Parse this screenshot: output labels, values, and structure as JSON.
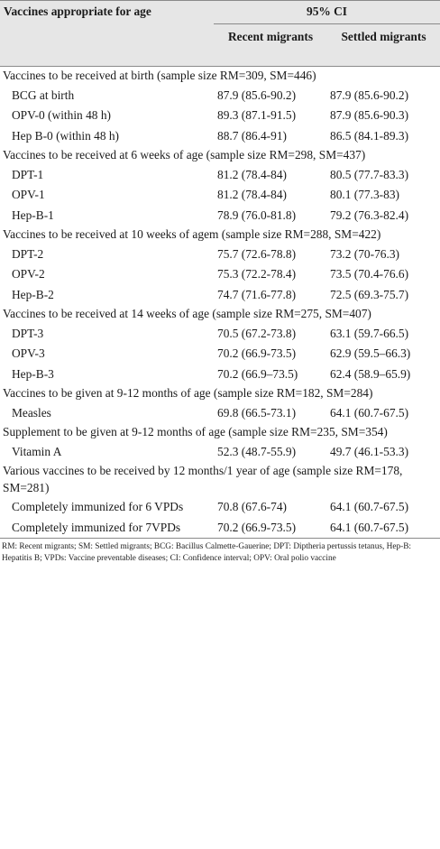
{
  "header": {
    "label": "Vaccines appropriate for age",
    "ci": "95% CI",
    "col_recent": "Recent migrants",
    "col_settled": "Settled migrants"
  },
  "sections": [
    {
      "title": "Vaccines to be received at birth (sample size RM=309, SM=446)",
      "rows": [
        {
          "label": "BCG at birth",
          "recent": "87.9 (85.6-90.2)",
          "settled": "87.9 (85.6-90.2)"
        },
        {
          "label": "OPV-0 (within 48 h)",
          "recent": "89.3 (87.1-91.5)",
          "settled": "87.9 (85.6-90.3)"
        },
        {
          "label": "Hep B-0 (within 48 h)",
          "recent": "88.7 (86.4-91)",
          "settled": "86.5 (84.1-89.3)"
        }
      ]
    },
    {
      "title": "Vaccines to be received at 6 weeks of age (sample size RM=298, SM=437)",
      "rows": [
        {
          "label": "DPT-1",
          "recent": "81.2 (78.4-84)",
          "settled": "80.5 (77.7-83.3)"
        },
        {
          "label": "OPV-1",
          "recent": "81.2 (78.4-84)",
          "settled": "80.1 (77.3-83)"
        },
        {
          "label": "Hep-B-1",
          "recent": "78.9 (76.0-81.8)",
          "settled": "79.2 (76.3-82.4)"
        }
      ]
    },
    {
      "title": "Vaccines to be received at 10 weeks of agem (sample size RM=288, SM=422)",
      "rows": [
        {
          "label": "DPT-2",
          "recent": "75.7 (72.6-78.8)",
          "settled": "73.2 (70-76.3)"
        },
        {
          "label": "OPV-2",
          "recent": "75.3 (72.2-78.4)",
          "settled": "73.5 (70.4-76.6)"
        },
        {
          "label": "Hep-B-2",
          "recent": "74.7 (71.6-77.8)",
          "settled": "72.5 (69.3-75.7)"
        }
      ]
    },
    {
      "title": "Vaccines to be received at 14 weeks of age (sample size RM=275, SM=407)",
      "rows": [
        {
          "label": "DPT-3",
          "recent": "70.5 (67.2-73.8)",
          "settled": "63.1 (59.7-66.5)"
        },
        {
          "label": "OPV-3",
          "recent": "70.2 (66.9-73.5)",
          "settled": "62.9 (59.5–66.3)"
        },
        {
          "label": "Hep-B-3",
          "recent": "70.2 (66.9–73.5)",
          "settled": "62.4 (58.9–65.9)"
        }
      ]
    },
    {
      "title": "Vaccines to be given at 9-12 months of age (sample size RM=182, SM=284)",
      "rows": [
        {
          "label": "Measles",
          "recent": "69.8 (66.5-73.1)",
          "settled": "64.1 (60.7-67.5)"
        }
      ]
    },
    {
      "title": "Supplement to be given at 9-12 months of age (sample size RM=235, SM=354)",
      "rows": [
        {
          "label": "Vitamin A",
          "recent": "52.3 (48.7-55.9)",
          "settled": "49.7 (46.1-53.3)"
        }
      ]
    },
    {
      "title": "Various vaccines to be received by 12 months/1 year of age (sample size RM=178, SM=281)",
      "rows": [
        {
          "label": "Completely immunized for 6 VPDs",
          "recent": "70.8 (67.6-74)",
          "settled": "64.1 (60.7-67.5)"
        },
        {
          "label": "Completely immunized for 7VPDs",
          "recent": "70.2 (66.9-73.5)",
          "settled": "64.1 (60.7-67.5)"
        }
      ]
    }
  ],
  "footnote": "RM: Recent migrants; SM: Settled migrants; BCG: Bacillus Calmette-Gauerine; DPT: Diptheria pertussis tetanus, Hep-B: Hepatitis B; VPDs: Vaccine preventable diseases; CI: Confidence interval; OPV: Oral polio vaccine"
}
